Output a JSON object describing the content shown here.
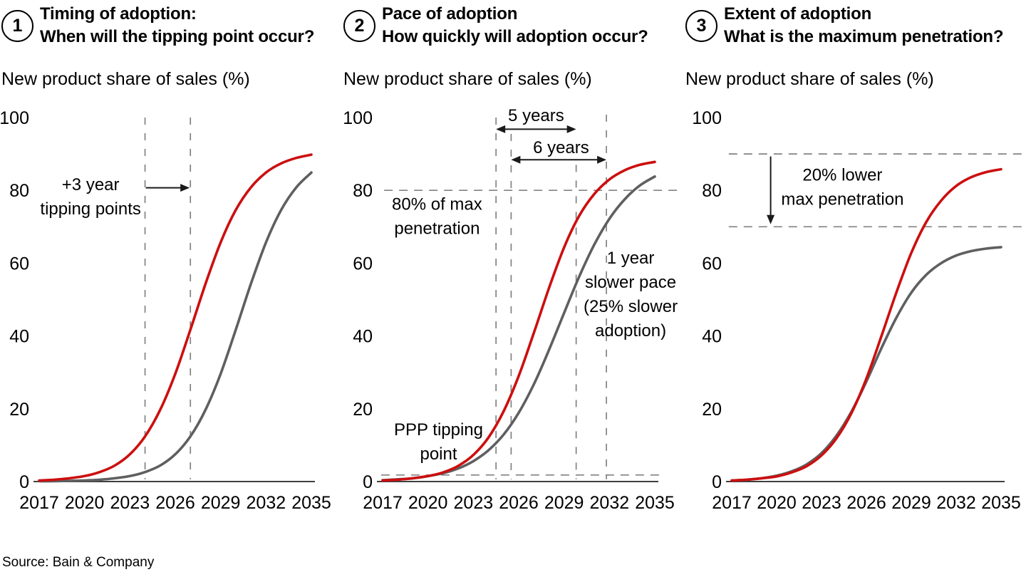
{
  "page": {
    "source_note": "Source: Bain & Company",
    "background": "#ffffff"
  },
  "colors": {
    "red_series": "#cc0f0f",
    "gray_series": "#5e5f61",
    "dashed_line": "#828282",
    "axis_line": "#3f3f3f",
    "arrow": "#1a1a1a",
    "text": "#000000"
  },
  "chart_data": [
    {
      "type": "line",
      "badge": "1",
      "title": "Timing of adoption:",
      "subtitle": "When will the tipping point occur?",
      "ylabel": "New product share of sales (%)",
      "x": [
        2017,
        2018,
        2019,
        2020,
        2021,
        2022,
        2023,
        2024,
        2025,
        2026,
        2027,
        2028,
        2029,
        2030,
        2031,
        2032,
        2033,
        2034,
        2035
      ],
      "xticks": [
        2017,
        2020,
        2023,
        2026,
        2029,
        2032,
        2035
      ],
      "yticks": [
        0,
        20,
        40,
        60,
        80,
        100
      ],
      "ylim": [
        0,
        100
      ],
      "xlim": [
        2017,
        2035
      ],
      "grid": false,
      "legend": "none",
      "series": [
        {
          "color_role": "red",
          "values": [
            0.3,
            0.5,
            0.9,
            1.5,
            2.6,
            4.4,
            7.5,
            12.4,
            19.7,
            29.6,
            41.7,
            54.3,
            65.7,
            74.6,
            80.8,
            84.9,
            87.4,
            88.9,
            89.8
          ]
        },
        {
          "color_role": "gray",
          "values": [
            0.1,
            0.1,
            0.2,
            0.3,
            0.5,
            0.9,
            1.5,
            2.6,
            4.4,
            7.5,
            12.4,
            19.7,
            29.6,
            41.7,
            54.3,
            65.7,
            74.6,
            80.8,
            84.9
          ]
        }
      ],
      "annotations": {
        "vlines": [
          {
            "year": 2024,
            "from": 100,
            "to": 0.6
          },
          {
            "year": 2027,
            "from": 100,
            "to": 0.6
          }
        ],
        "hlines": [],
        "arrows": [
          {
            "dir": "right",
            "value": 80.7,
            "from_year": 2024.05,
            "to_year": 2026.95
          }
        ],
        "labels": [
          {
            "lines": [
              "+3 year",
              "tipping points"
            ],
            "year": 2020.4,
            "value": 78.3
          }
        ]
      }
    },
    {
      "type": "line",
      "badge": "2",
      "title": "Pace of adoption",
      "subtitle": "How quickly will adoption occur?",
      "ylabel": "New product share of sales (%)",
      "x": [
        2017,
        2018,
        2019,
        2020,
        2021,
        2022,
        2023,
        2024,
        2025,
        2026,
        2027,
        2028,
        2029,
        2030,
        2031,
        2032,
        2033,
        2034,
        2035
      ],
      "xticks": [
        2017,
        2020,
        2023,
        2026,
        2029,
        2032,
        2035
      ],
      "yticks": [
        0,
        20,
        40,
        60,
        80,
        100
      ],
      "ylim": [
        0,
        100
      ],
      "xlim": [
        2017,
        2035
      ],
      "grid": false,
      "legend": "none",
      "series": [
        {
          "color_role": "red",
          "values": [
            0.3,
            0.5,
            0.9,
            1.5,
            2.5,
            4.3,
            7.3,
            12.1,
            19.3,
            29.0,
            40.8,
            53.1,
            64.3,
            73.0,
            79.0,
            83.0,
            85.5,
            87.0,
            87.8
          ]
        },
        {
          "color_role": "gray",
          "values": [
            0.4,
            0.6,
            0.9,
            1.5,
            2.3,
            3.6,
            5.6,
            8.6,
            12.9,
            18.9,
            26.7,
            36.1,
            46.3,
            56.3,
            65.1,
            72.2,
            77.5,
            81.3,
            83.8
          ]
        }
      ],
      "annotations": {
        "vlines": [
          {
            "year": 2024.5,
            "from": 100,
            "to": 0.6
          },
          {
            "year": 2025.5,
            "from": 95.5,
            "to": 0.6
          },
          {
            "year": 2029.8,
            "from": 87,
            "to": 0.6
          },
          {
            "year": 2031.8,
            "from": 100.8,
            "to": 0.6
          }
        ],
        "hlines": [
          {
            "value": 80,
            "from_year": 2017.1,
            "to_year": 2036.7
          },
          {
            "value": 1.8,
            "from_year": 2016.9,
            "to_year": 2035.5
          }
        ],
        "arrows": [
          {
            "dir": "both",
            "value": 96.8,
            "from_year": 2024.5,
            "to_year": 2029.8
          },
          {
            "dir": "both",
            "value": 88.4,
            "from_year": 2025.5,
            "to_year": 2031.8
          }
        ],
        "labels": [
          {
            "lines": [
              "5 years"
            ],
            "year": 2027.15,
            "value": 100.6
          },
          {
            "lines": [
              "6 years"
            ],
            "year": 2028.8,
            "value": 91.8
          },
          {
            "lines": [
              "80% of max",
              "penetration"
            ],
            "year": 2020.6,
            "value": 72.9
          },
          {
            "lines": [
              "PPP tipping",
              "point"
            ],
            "year": 2020.7,
            "value": 11.0
          },
          {
            "lines": [
              "1 year",
              "slower pace",
              "(25% slower",
              "adoption)"
            ],
            "year": 2033.4,
            "value": 51.5
          }
        ]
      }
    },
    {
      "type": "line",
      "badge": "3",
      "title": "Extent of adoption",
      "subtitle": "What is the maximum penetration?",
      "ylabel": "New product share of sales (%)",
      "x": [
        2017,
        2018,
        2019,
        2020,
        2021,
        2022,
        2023,
        2024,
        2025,
        2026,
        2027,
        2028,
        2029,
        2030,
        2031,
        2032,
        2033,
        2034,
        2035
      ],
      "xticks": [
        2017,
        2020,
        2023,
        2026,
        2029,
        2032,
        2035
      ],
      "yticks": [
        0,
        20,
        40,
        60,
        80,
        100
      ],
      "ylim": [
        0,
        100
      ],
      "xlim": [
        2017,
        2035
      ],
      "grid": false,
      "legend": "none",
      "series": [
        {
          "color_role": "red",
          "values": [
            0.3,
            0.5,
            0.9,
            1.4,
            2.5,
            4.2,
            7.2,
            11.9,
            18.8,
            28.3,
            39.9,
            51.9,
            62.8,
            71.3,
            77.2,
            81.2,
            83.6,
            85.0,
            85.8
          ]
        },
        {
          "color_role": "gray",
          "values": [
            0.3,
            0.5,
            0.9,
            1.6,
            2.8,
            4.7,
            7.8,
            12.6,
            19.2,
            27.5,
            36.6,
            45.0,
            51.9,
            56.8,
            60.0,
            62.1,
            63.3,
            64.0,
            64.4
          ]
        }
      ],
      "annotations": {
        "vlines": [],
        "hlines": [
          {
            "value": 90,
            "from_year": 2016.8,
            "to_year": 2036.5
          },
          {
            "value": 70,
            "from_year": 2016.8,
            "to_year": 2036.5
          }
        ],
        "arrows": [
          {
            "dir": "down",
            "year": 2019.6,
            "from_value": 89.3,
            "to_value": 70.7
          }
        ],
        "labels": [
          {
            "lines": [
              "20% lower",
              "max penetration"
            ],
            "year": 2024.4,
            "value": 80.9
          }
        ]
      }
    }
  ]
}
